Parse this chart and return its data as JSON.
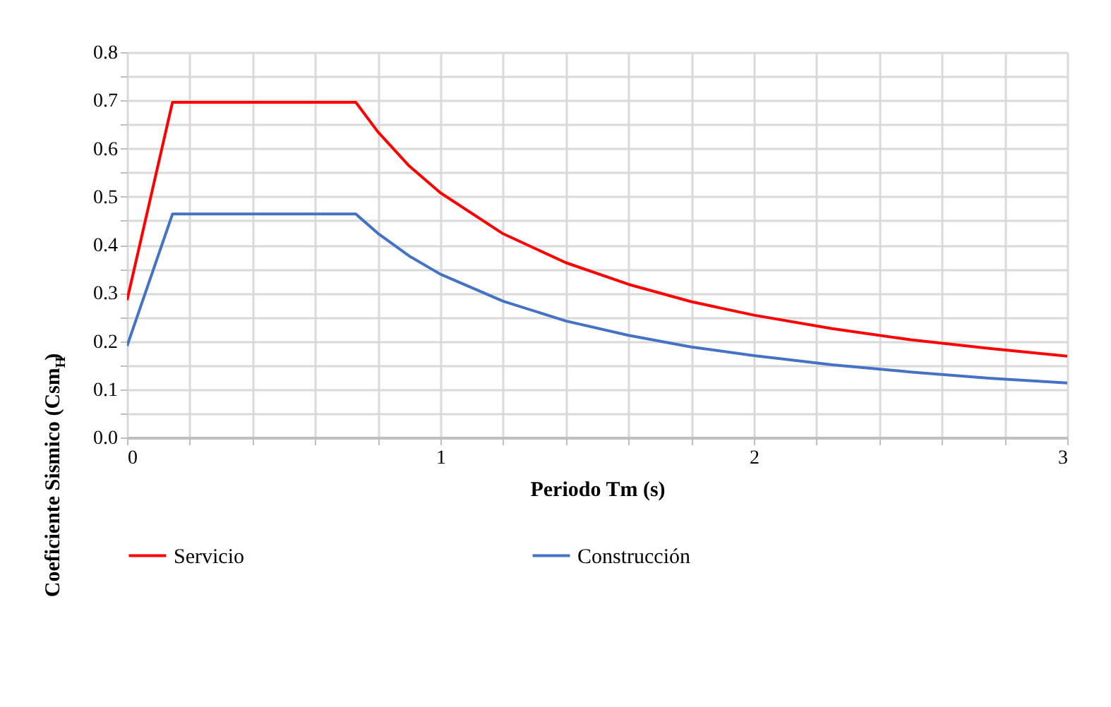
{
  "chart_data": {
    "type": "line",
    "xlabel": "Periodo Tm (s)",
    "ylabel": "Coeficiente Sismico (Csm$_{H}$)",
    "x": [
      0,
      0.145,
      0.73,
      0.8,
      0.9,
      1.0,
      1.2,
      1.4,
      1.6,
      1.8,
      2.0,
      2.25,
      2.5,
      2.75,
      3.0
    ],
    "series": [
      {
        "name": "Servicio",
        "color": "#ff0000",
        "values": [
          0.285,
          0.696,
          0.696,
          0.635,
          0.564,
          0.508,
          0.423,
          0.363,
          0.318,
          0.282,
          0.254,
          0.226,
          0.203,
          0.185,
          0.169
        ]
      },
      {
        "name": "Construcción",
        "color": "#4472c4",
        "values": [
          0.19,
          0.464,
          0.464,
          0.424,
          0.377,
          0.339,
          0.283,
          0.242,
          0.212,
          0.188,
          0.17,
          0.151,
          0.136,
          0.123,
          0.113
        ]
      }
    ],
    "xlim": [
      0,
      3
    ],
    "ylim": [
      0,
      0.8
    ],
    "xticks": [
      0,
      {
        "value": 0.2,
        "label": null
      },
      {
        "value": 0.4,
        "label": null
      },
      {
        "value": 0.6,
        "label": null
      },
      {
        "value": 0.8,
        "label": null
      },
      1,
      {
        "value": 1.2,
        "label": null
      },
      {
        "value": 1.4,
        "label": null
      },
      {
        "value": 1.6,
        "label": null
      },
      {
        "value": 1.8,
        "label": null
      },
      2,
      {
        "value": 2.2,
        "label": null
      },
      {
        "value": 2.4,
        "label": null
      },
      {
        "value": 2.6,
        "label": null
      },
      {
        "value": 2.8,
        "label": null
      },
      3
    ],
    "yticks": [
      {
        "value": 0,
        "label": "0.0"
      },
      {
        "value": 0.05,
        "label": null
      },
      0.1,
      {
        "value": 0.15,
        "label": null
      },
      0.2,
      {
        "value": 0.25,
        "label": null
      },
      0.3,
      {
        "value": 0.35,
        "label": null
      },
      0.4,
      {
        "value": 0.45,
        "label": null
      },
      0.5,
      {
        "value": 0.55,
        "label": null
      },
      0.6,
      {
        "value": 0.65,
        "label": null
      },
      0.7,
      {
        "value": 0.75,
        "label": null
      },
      0.8
    ],
    "grid": true,
    "legend": "bottom",
    "marker": "none",
    "line_style": "solid"
  }
}
